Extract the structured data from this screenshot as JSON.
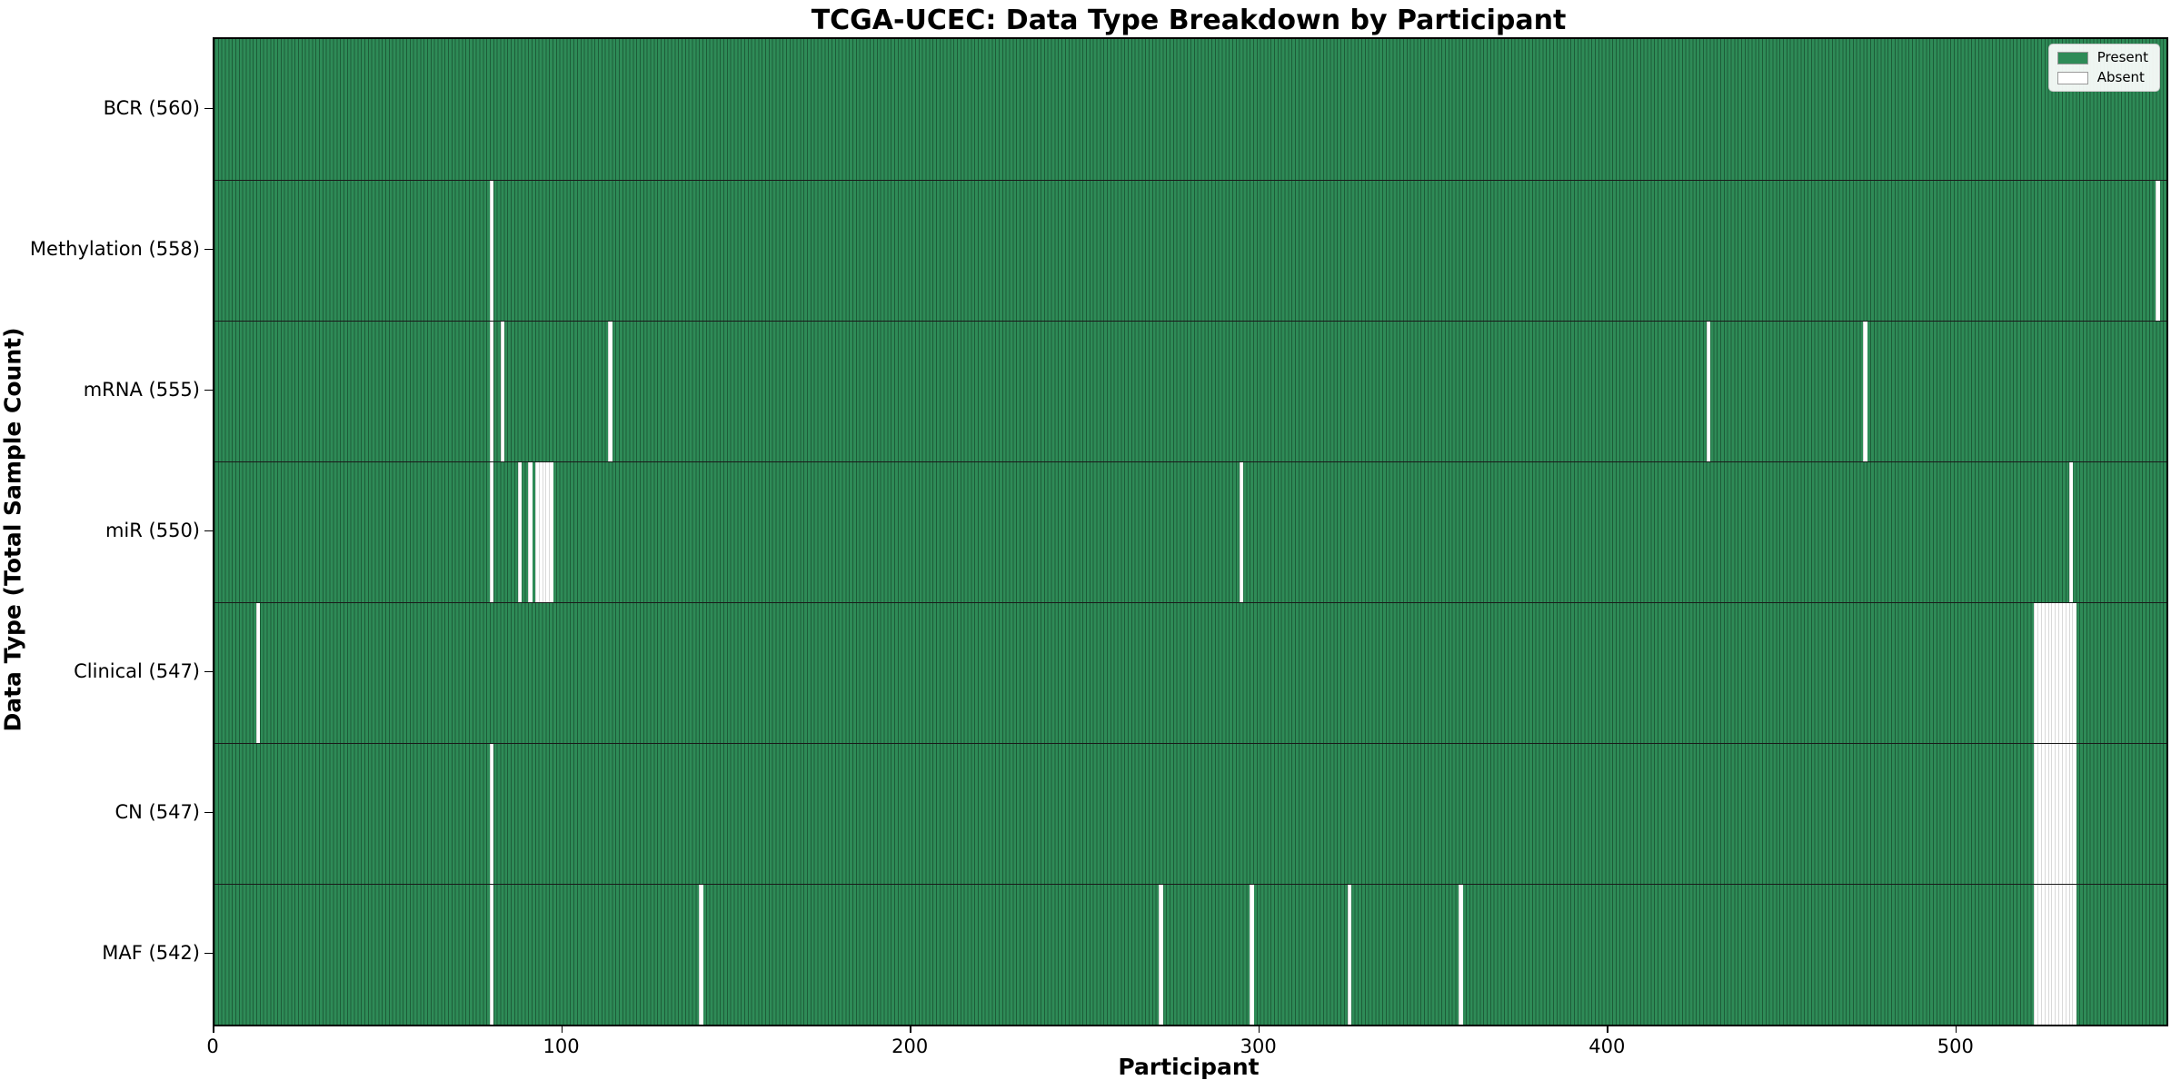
{
  "chart_data": {
    "type": "heatmap",
    "title": "TCGA-UCEC: Data Type Breakdown by Participant",
    "xlabel": "Participant",
    "ylabel": "Data Type (Total Sample Count)",
    "n_participants": 560,
    "xlim": [
      0,
      560
    ],
    "x_ticks": [
      0,
      100,
      200,
      300,
      400,
      500
    ],
    "grid": false,
    "legend_position": "upper right",
    "colors": {
      "present": "#2e8b57",
      "absent": "#ffffff",
      "bar_edge": "#1d5c38",
      "row_separator": "#1a1a1a",
      "absent_edge": "#d9d9d9"
    },
    "legend": [
      {
        "label": "Present",
        "color": "#2e8b57"
      },
      {
        "label": "Absent",
        "color": "#ffffff"
      }
    ],
    "rows": [
      {
        "label": "BCR",
        "total": 560,
        "display": "BCR (560)",
        "absent": []
      },
      {
        "label": "Methylation",
        "total": 558,
        "display": "Methylation (558)",
        "absent": [
          79,
          557
        ]
      },
      {
        "label": "mRNA",
        "total": 555,
        "display": "mRNA (555)",
        "absent": [
          79,
          82,
          113,
          428,
          473
        ]
      },
      {
        "label": "miR",
        "total": 550,
        "display": "miR (550)",
        "absent": [
          79,
          87,
          90,
          92,
          93,
          94,
          95,
          96,
          294,
          532
        ]
      },
      {
        "label": "Clinical",
        "total": 547,
        "display": "Clinical (547)",
        "absent": [
          12,
          522,
          523,
          524,
          525,
          526,
          527,
          528,
          529,
          530,
          531,
          532,
          533
        ]
      },
      {
        "label": "CN",
        "total": 547,
        "display": "CN (547)",
        "absent": [
          79,
          522,
          523,
          524,
          525,
          526,
          527,
          528,
          529,
          530,
          531,
          532,
          533
        ]
      },
      {
        "label": "MAF",
        "total": 542,
        "display": "MAF (542)",
        "absent": [
          79,
          139,
          271,
          297,
          325,
          357,
          522,
          523,
          524,
          525,
          526,
          527,
          528,
          529,
          530,
          531,
          532,
          533
        ]
      }
    ]
  }
}
